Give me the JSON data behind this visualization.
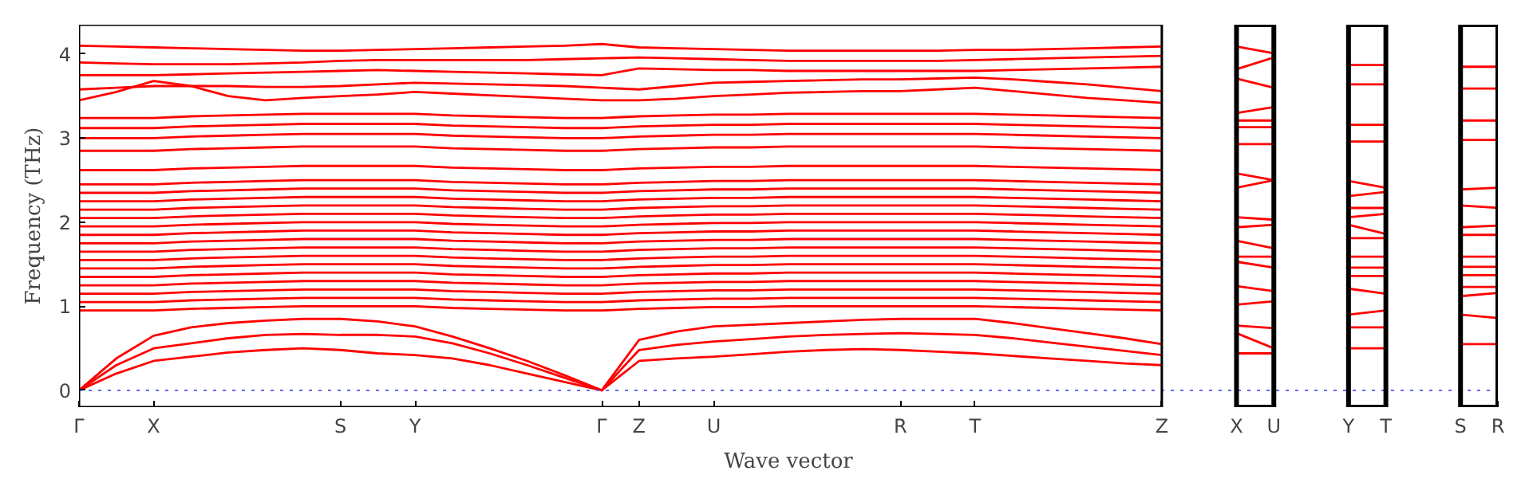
{
  "chart_data": {
    "type": "line",
    "xlabel": "Wave vector",
    "ylabel": "Frequency (THz)",
    "grid": false,
    "line_style": "solid",
    "ylim": [
      -0.2,
      4.35
    ],
    "yticks": [
      0,
      1,
      2,
      3,
      4
    ],
    "categories": [
      "Γ",
      null,
      "X",
      null,
      null,
      null,
      null,
      "S",
      null,
      "Y",
      null,
      null,
      null,
      null,
      "Γ",
      "Z",
      null,
      "U",
      null,
      null,
      null,
      null,
      "R",
      null,
      "T",
      null,
      null,
      null,
      null,
      "Z",
      null,
      "X",
      "U",
      null,
      "Y",
      "T",
      null,
      "S",
      "R"
    ],
    "ref_lines": [
      {
        "axis": "y",
        "value": 0,
        "color": "#6666ff",
        "line_style": "dotted"
      }
    ],
    "series": [
      {
        "color": "#ff0000",
        "values": [
          0,
          0.2,
          0.35,
          0.4,
          0.45,
          0.48,
          0.5,
          0.48,
          0.44,
          0.42,
          0.38,
          0.3,
          0.2,
          0.1,
          0,
          0.35,
          0.38,
          0.4,
          0.43,
          0.46,
          0.48,
          0.49,
          0.48,
          0.46,
          0.44,
          0.41,
          0.38,
          0.35,
          0.32,
          0.3,
          null,
          0.44,
          0.44,
          null,
          0.5,
          0.5,
          null,
          0.55,
          0.55
        ]
      },
      {
        "color": "#ff0000",
        "values": [
          0,
          0.3,
          0.5,
          0.56,
          0.62,
          0.66,
          0.67,
          0.66,
          0.66,
          0.64,
          0.56,
          0.44,
          0.3,
          0.15,
          0,
          0.48,
          0.54,
          0.58,
          0.61,
          0.64,
          0.66,
          0.67,
          0.68,
          0.67,
          0.66,
          0.62,
          0.57,
          0.52,
          0.47,
          0.42,
          null,
          0.68,
          0.5,
          null,
          0.75,
          0.75,
          null,
          0.9,
          0.86
        ]
      },
      {
        "color": "#ff0000",
        "values": [
          0,
          0.38,
          0.65,
          0.75,
          0.8,
          0.83,
          0.85,
          0.85,
          0.82,
          0.76,
          0.64,
          0.5,
          0.35,
          0.18,
          0,
          0.6,
          0.7,
          0.76,
          0.78,
          0.8,
          0.82,
          0.84,
          0.85,
          0.85,
          0.85,
          0.8,
          0.74,
          0.68,
          0.62,
          0.55,
          null,
          0.77,
          0.74,
          null,
          0.9,
          0.95,
          null,
          1.12,
          1.16
        ]
      },
      {
        "color": "#ff0000",
        "values": [
          0.95,
          0.95,
          0.95,
          0.97,
          0.98,
          0.99,
          1.0,
          1.0,
          1.0,
          1.0,
          0.98,
          0.97,
          0.96,
          0.95,
          0.95,
          0.97,
          0.98,
          0.99,
          0.99,
          1.0,
          1.0,
          1.0,
          1.0,
          1.0,
          1.0,
          0.99,
          0.98,
          0.97,
          0.96,
          0.95,
          null,
          1.02,
          1.06,
          null,
          1.21,
          1.15,
          null,
          1.23,
          1.23
        ]
      },
      {
        "color": "#ff0000",
        "values": [
          1.05,
          1.05,
          1.05,
          1.07,
          1.08,
          1.09,
          1.1,
          1.1,
          1.1,
          1.1,
          1.08,
          1.07,
          1.06,
          1.05,
          1.05,
          1.07,
          1.08,
          1.09,
          1.09,
          1.1,
          1.1,
          1.1,
          1.1,
          1.1,
          1.1,
          1.09,
          1.08,
          1.07,
          1.06,
          1.05,
          null,
          1.24,
          1.18,
          null,
          1.36,
          1.36,
          null,
          1.37,
          1.37
        ]
      },
      {
        "color": "#ff0000",
        "values": [
          1.15,
          1.15,
          1.15,
          1.17,
          1.18,
          1.19,
          1.2,
          1.2,
          1.2,
          1.2,
          1.18,
          1.17,
          1.16,
          1.15,
          1.15,
          1.17,
          1.18,
          1.19,
          1.19,
          1.2,
          1.2,
          1.2,
          1.2,
          1.2,
          1.2,
          1.19,
          1.18,
          1.17,
          1.16,
          1.15,
          null,
          1.53,
          1.46,
          null,
          1.46,
          1.46,
          null,
          1.47,
          1.47
        ]
      },
      {
        "color": "#ff0000",
        "values": [
          1.25,
          1.25,
          1.25,
          1.27,
          1.28,
          1.29,
          1.3,
          1.3,
          1.3,
          1.3,
          1.28,
          1.27,
          1.26,
          1.25,
          1.25,
          1.27,
          1.28,
          1.29,
          1.29,
          1.3,
          1.3,
          1.3,
          1.3,
          1.3,
          1.3,
          1.29,
          1.28,
          1.27,
          1.26,
          1.25,
          null,
          1.59,
          1.59,
          null,
          1.59,
          1.59,
          null,
          1.59,
          1.59
        ]
      },
      {
        "color": "#ff0000",
        "values": [
          1.35,
          1.35,
          1.35,
          1.37,
          1.38,
          1.39,
          1.4,
          1.4,
          1.4,
          1.4,
          1.38,
          1.37,
          1.36,
          1.35,
          1.35,
          1.37,
          1.38,
          1.39,
          1.39,
          1.4,
          1.4,
          1.4,
          1.4,
          1.4,
          1.4,
          1.39,
          1.38,
          1.37,
          1.36,
          1.35,
          null,
          1.78,
          1.69,
          null,
          1.81,
          1.81,
          null,
          1.85,
          1.85
        ]
      },
      {
        "color": "#ff0000",
        "values": [
          1.45,
          1.45,
          1.45,
          1.47,
          1.48,
          1.49,
          1.5,
          1.5,
          1.5,
          1.5,
          1.48,
          1.47,
          1.46,
          1.45,
          1.45,
          1.47,
          1.48,
          1.49,
          1.49,
          1.5,
          1.5,
          1.5,
          1.5,
          1.5,
          1.5,
          1.49,
          1.48,
          1.47,
          1.46,
          1.45,
          null,
          1.94,
          1.97,
          null,
          1.97,
          1.86,
          null,
          1.94,
          1.96
        ]
      },
      {
        "color": "#ff0000",
        "values": [
          1.55,
          1.55,
          1.55,
          1.57,
          1.58,
          1.59,
          1.6,
          1.6,
          1.6,
          1.6,
          1.58,
          1.57,
          1.56,
          1.55,
          1.55,
          1.57,
          1.58,
          1.59,
          1.59,
          1.6,
          1.6,
          1.6,
          1.6,
          1.6,
          1.6,
          1.59,
          1.58,
          1.57,
          1.56,
          1.55,
          null,
          2.06,
          2.03,
          null,
          2.06,
          2.1,
          null,
          2.2,
          2.17
        ]
      },
      {
        "color": "#ff0000",
        "values": [
          1.65,
          1.65,
          1.65,
          1.67,
          1.68,
          1.69,
          1.7,
          1.7,
          1.7,
          1.7,
          1.68,
          1.67,
          1.66,
          1.65,
          1.65,
          1.67,
          1.68,
          1.69,
          1.69,
          1.7,
          1.7,
          1.7,
          1.7,
          1.7,
          1.7,
          1.69,
          1.68,
          1.67,
          1.66,
          1.65,
          null,
          2.41,
          2.5,
          null,
          2.17,
          2.17,
          null,
          2.39,
          2.41
        ]
      },
      {
        "color": "#ff0000",
        "values": [
          1.75,
          1.75,
          1.75,
          1.77,
          1.78,
          1.79,
          1.8,
          1.8,
          1.8,
          1.8,
          1.78,
          1.77,
          1.76,
          1.75,
          1.75,
          1.77,
          1.78,
          1.79,
          1.79,
          1.8,
          1.8,
          1.8,
          1.8,
          1.8,
          1.8,
          1.79,
          1.78,
          1.77,
          1.76,
          1.75,
          null,
          2.58,
          2.5,
          null,
          2.31,
          2.36,
          null,
          2.98,
          2.98
        ]
      },
      {
        "color": "#ff0000",
        "values": [
          1.85,
          1.85,
          1.85,
          1.87,
          1.88,
          1.89,
          1.9,
          1.9,
          1.9,
          1.9,
          1.88,
          1.87,
          1.86,
          1.85,
          1.85,
          1.87,
          1.88,
          1.89,
          1.89,
          1.9,
          1.9,
          1.9,
          1.9,
          1.9,
          1.9,
          1.89,
          1.88,
          1.87,
          1.86,
          1.85,
          null,
          2.93,
          2.93,
          null,
          2.49,
          2.41,
          null,
          3.21,
          3.21
        ]
      },
      {
        "color": "#ff0000",
        "values": [
          1.95,
          1.95,
          1.95,
          1.97,
          1.98,
          1.99,
          2.0,
          2.0,
          2.0,
          2.0,
          1.98,
          1.97,
          1.96,
          1.95,
          1.95,
          1.97,
          1.98,
          1.99,
          1.99,
          2.0,
          2.0,
          2.0,
          2.0,
          2.0,
          2.0,
          1.99,
          1.98,
          1.97,
          1.96,
          1.95,
          null,
          3.13,
          3.13,
          null,
          2.96,
          2.96,
          null,
          3.59,
          3.59
        ]
      },
      {
        "color": "#ff0000",
        "values": [
          2.05,
          2.05,
          2.05,
          2.07,
          2.08,
          2.09,
          2.1,
          2.1,
          2.1,
          2.1,
          2.08,
          2.07,
          2.06,
          2.05,
          2.05,
          2.07,
          2.08,
          2.09,
          2.09,
          2.1,
          2.1,
          2.1,
          2.1,
          2.1,
          2.1,
          2.09,
          2.08,
          2.07,
          2.06,
          2.05,
          null,
          3.21,
          3.21,
          null,
          3.16,
          3.16,
          null,
          3.85,
          3.85
        ]
      },
      {
        "color": "#ff0000",
        "values": [
          2.15,
          2.15,
          2.15,
          2.17,
          2.18,
          2.19,
          2.2,
          2.2,
          2.2,
          2.2,
          2.18,
          2.17,
          2.16,
          2.15,
          2.15,
          2.17,
          2.18,
          2.19,
          2.19,
          2.2,
          2.2,
          2.2,
          2.2,
          2.2,
          2.2,
          2.19,
          2.18,
          2.17,
          2.16,
          2.15,
          null,
          3.3,
          3.37,
          null,
          3.64,
          3.64,
          null,
          null,
          null
        ]
      },
      {
        "color": "#ff0000",
        "values": [
          2.25,
          2.25,
          2.25,
          2.27,
          2.28,
          2.29,
          2.3,
          2.3,
          2.3,
          2.3,
          2.28,
          2.27,
          2.26,
          2.25,
          2.25,
          2.27,
          2.28,
          2.29,
          2.29,
          2.3,
          2.3,
          2.3,
          2.3,
          2.3,
          2.3,
          2.29,
          2.28,
          2.27,
          2.26,
          2.25,
          null,
          3.71,
          3.6,
          null,
          3.87,
          3.87,
          null,
          null,
          null
        ]
      },
      {
        "color": "#ff0000",
        "values": [
          2.35,
          2.35,
          2.35,
          2.37,
          2.38,
          2.39,
          2.4,
          2.4,
          2.4,
          2.4,
          2.38,
          2.37,
          2.36,
          2.35,
          2.35,
          2.37,
          2.38,
          2.39,
          2.39,
          2.4,
          2.4,
          2.4,
          2.4,
          2.4,
          2.4,
          2.39,
          2.38,
          2.37,
          2.36,
          2.35,
          null,
          3.82,
          3.96,
          null,
          null,
          null,
          null,
          null,
          null
        ]
      },
      {
        "color": "#ff0000",
        "values": [
          2.45,
          2.45,
          2.45,
          2.47,
          2.48,
          2.49,
          2.5,
          2.5,
          2.5,
          2.5,
          2.48,
          2.47,
          2.46,
          2.45,
          2.45,
          2.47,
          2.48,
          2.49,
          2.49,
          2.5,
          2.5,
          2.5,
          2.5,
          2.5,
          2.5,
          2.49,
          2.48,
          2.47,
          2.46,
          2.45,
          null,
          4.09,
          4.01,
          null,
          null,
          null,
          null,
          null,
          null
        ]
      },
      {
        "color": "#ff0000",
        "values": [
          2.62,
          2.62,
          2.62,
          2.64,
          2.65,
          2.66,
          2.67,
          2.67,
          2.67,
          2.67,
          2.65,
          2.64,
          2.63,
          2.62,
          2.62,
          2.64,
          2.65,
          2.66,
          2.66,
          2.67,
          2.67,
          2.67,
          2.67,
          2.67,
          2.67,
          2.66,
          2.65,
          2.64,
          2.63,
          2.62,
          null,
          null,
          null,
          null,
          null,
          null,
          null,
          null,
          null
        ]
      },
      {
        "color": "#ff0000",
        "values": [
          2.85,
          2.85,
          2.85,
          2.87,
          2.88,
          2.89,
          2.9,
          2.9,
          2.9,
          2.9,
          2.88,
          2.87,
          2.86,
          2.85,
          2.85,
          2.87,
          2.88,
          2.89,
          2.89,
          2.9,
          2.9,
          2.9,
          2.9,
          2.9,
          2.9,
          2.89,
          2.88,
          2.87,
          2.86,
          2.85,
          null,
          null,
          null,
          null,
          null,
          null,
          null,
          null,
          null
        ]
      },
      {
        "color": "#ff0000",
        "values": [
          3.0,
          3.0,
          3.0,
          3.02,
          3.03,
          3.04,
          3.05,
          3.05,
          3.05,
          3.05,
          3.03,
          3.02,
          3.01,
          3.0,
          3.0,
          3.02,
          3.03,
          3.04,
          3.04,
          3.05,
          3.05,
          3.05,
          3.05,
          3.05,
          3.05,
          3.04,
          3.03,
          3.02,
          3.01,
          3.0,
          null,
          null,
          null,
          null,
          null,
          null,
          null,
          null,
          null
        ]
      },
      {
        "color": "#ff0000",
        "values": [
          3.12,
          3.12,
          3.12,
          3.14,
          3.15,
          3.16,
          3.17,
          3.17,
          3.17,
          3.17,
          3.15,
          3.14,
          3.13,
          3.12,
          3.12,
          3.14,
          3.15,
          3.16,
          3.16,
          3.17,
          3.17,
          3.17,
          3.17,
          3.17,
          3.17,
          3.16,
          3.15,
          3.14,
          3.13,
          3.12,
          null,
          null,
          null,
          null,
          null,
          null,
          null,
          null,
          null
        ]
      },
      {
        "color": "#ff0000",
        "values": [
          3.24,
          3.24,
          3.24,
          3.26,
          3.27,
          3.28,
          3.29,
          3.29,
          3.29,
          3.29,
          3.27,
          3.26,
          3.25,
          3.24,
          3.24,
          3.26,
          3.27,
          3.28,
          3.28,
          3.29,
          3.29,
          3.29,
          3.29,
          3.29,
          3.29,
          3.28,
          3.27,
          3.26,
          3.25,
          3.24,
          null,
          null,
          null,
          null,
          null,
          null,
          null,
          null,
          null
        ]
      },
      {
        "color": "#ff0000",
        "values": [
          3.45,
          3.55,
          3.68,
          3.62,
          3.5,
          3.45,
          3.48,
          3.5,
          3.52,
          3.55,
          3.53,
          3.51,
          3.49,
          3.47,
          3.45,
          3.45,
          3.47,
          3.5,
          3.52,
          3.54,
          3.55,
          3.56,
          3.56,
          3.58,
          3.6,
          3.56,
          3.52,
          3.48,
          3.45,
          3.42,
          null,
          null,
          null,
          null,
          null,
          null,
          null,
          null,
          null
        ]
      },
      {
        "color": "#ff0000",
        "values": [
          3.58,
          3.6,
          3.62,
          3.62,
          3.62,
          3.61,
          3.61,
          3.62,
          3.64,
          3.66,
          3.65,
          3.64,
          3.63,
          3.62,
          3.6,
          3.58,
          3.62,
          3.66,
          3.67,
          3.68,
          3.69,
          3.7,
          3.7,
          3.71,
          3.72,
          3.7,
          3.67,
          3.64,
          3.6,
          3.56,
          null,
          null,
          null,
          null,
          null,
          null,
          null,
          null,
          null
        ]
      },
      {
        "color": "#ff0000",
        "values": [
          3.75,
          3.75,
          3.75,
          3.76,
          3.77,
          3.78,
          3.79,
          3.8,
          3.81,
          3.8,
          3.79,
          3.78,
          3.77,
          3.76,
          3.75,
          3.83,
          3.82,
          3.81,
          3.81,
          3.8,
          3.8,
          3.8,
          3.8,
          3.8,
          3.8,
          3.81,
          3.82,
          3.83,
          3.84,
          3.85,
          null,
          null,
          null,
          null,
          null,
          null,
          null,
          null,
          null
        ]
      },
      {
        "color": "#ff0000",
        "values": [
          3.9,
          3.89,
          3.88,
          3.88,
          3.88,
          3.89,
          3.9,
          3.92,
          3.93,
          3.93,
          3.93,
          3.93,
          3.93,
          3.94,
          3.95,
          3.96,
          3.95,
          3.94,
          3.93,
          3.92,
          3.92,
          3.92,
          3.92,
          3.92,
          3.93,
          3.94,
          3.95,
          3.96,
          3.97,
          3.98,
          null,
          null,
          null,
          null,
          null,
          null,
          null,
          null,
          null
        ]
      },
      {
        "color": "#ff0000",
        "values": [
          4.1,
          4.09,
          4.08,
          4.07,
          4.06,
          4.05,
          4.04,
          4.04,
          4.05,
          4.06,
          4.07,
          4.08,
          4.09,
          4.1,
          4.12,
          4.08,
          4.07,
          4.06,
          4.05,
          4.04,
          4.04,
          4.04,
          4.04,
          4.04,
          4.05,
          4.05,
          4.06,
          4.07,
          4.08,
          4.09,
          null,
          null,
          null,
          null,
          null,
          null,
          null,
          null,
          null
        ]
      }
    ]
  }
}
